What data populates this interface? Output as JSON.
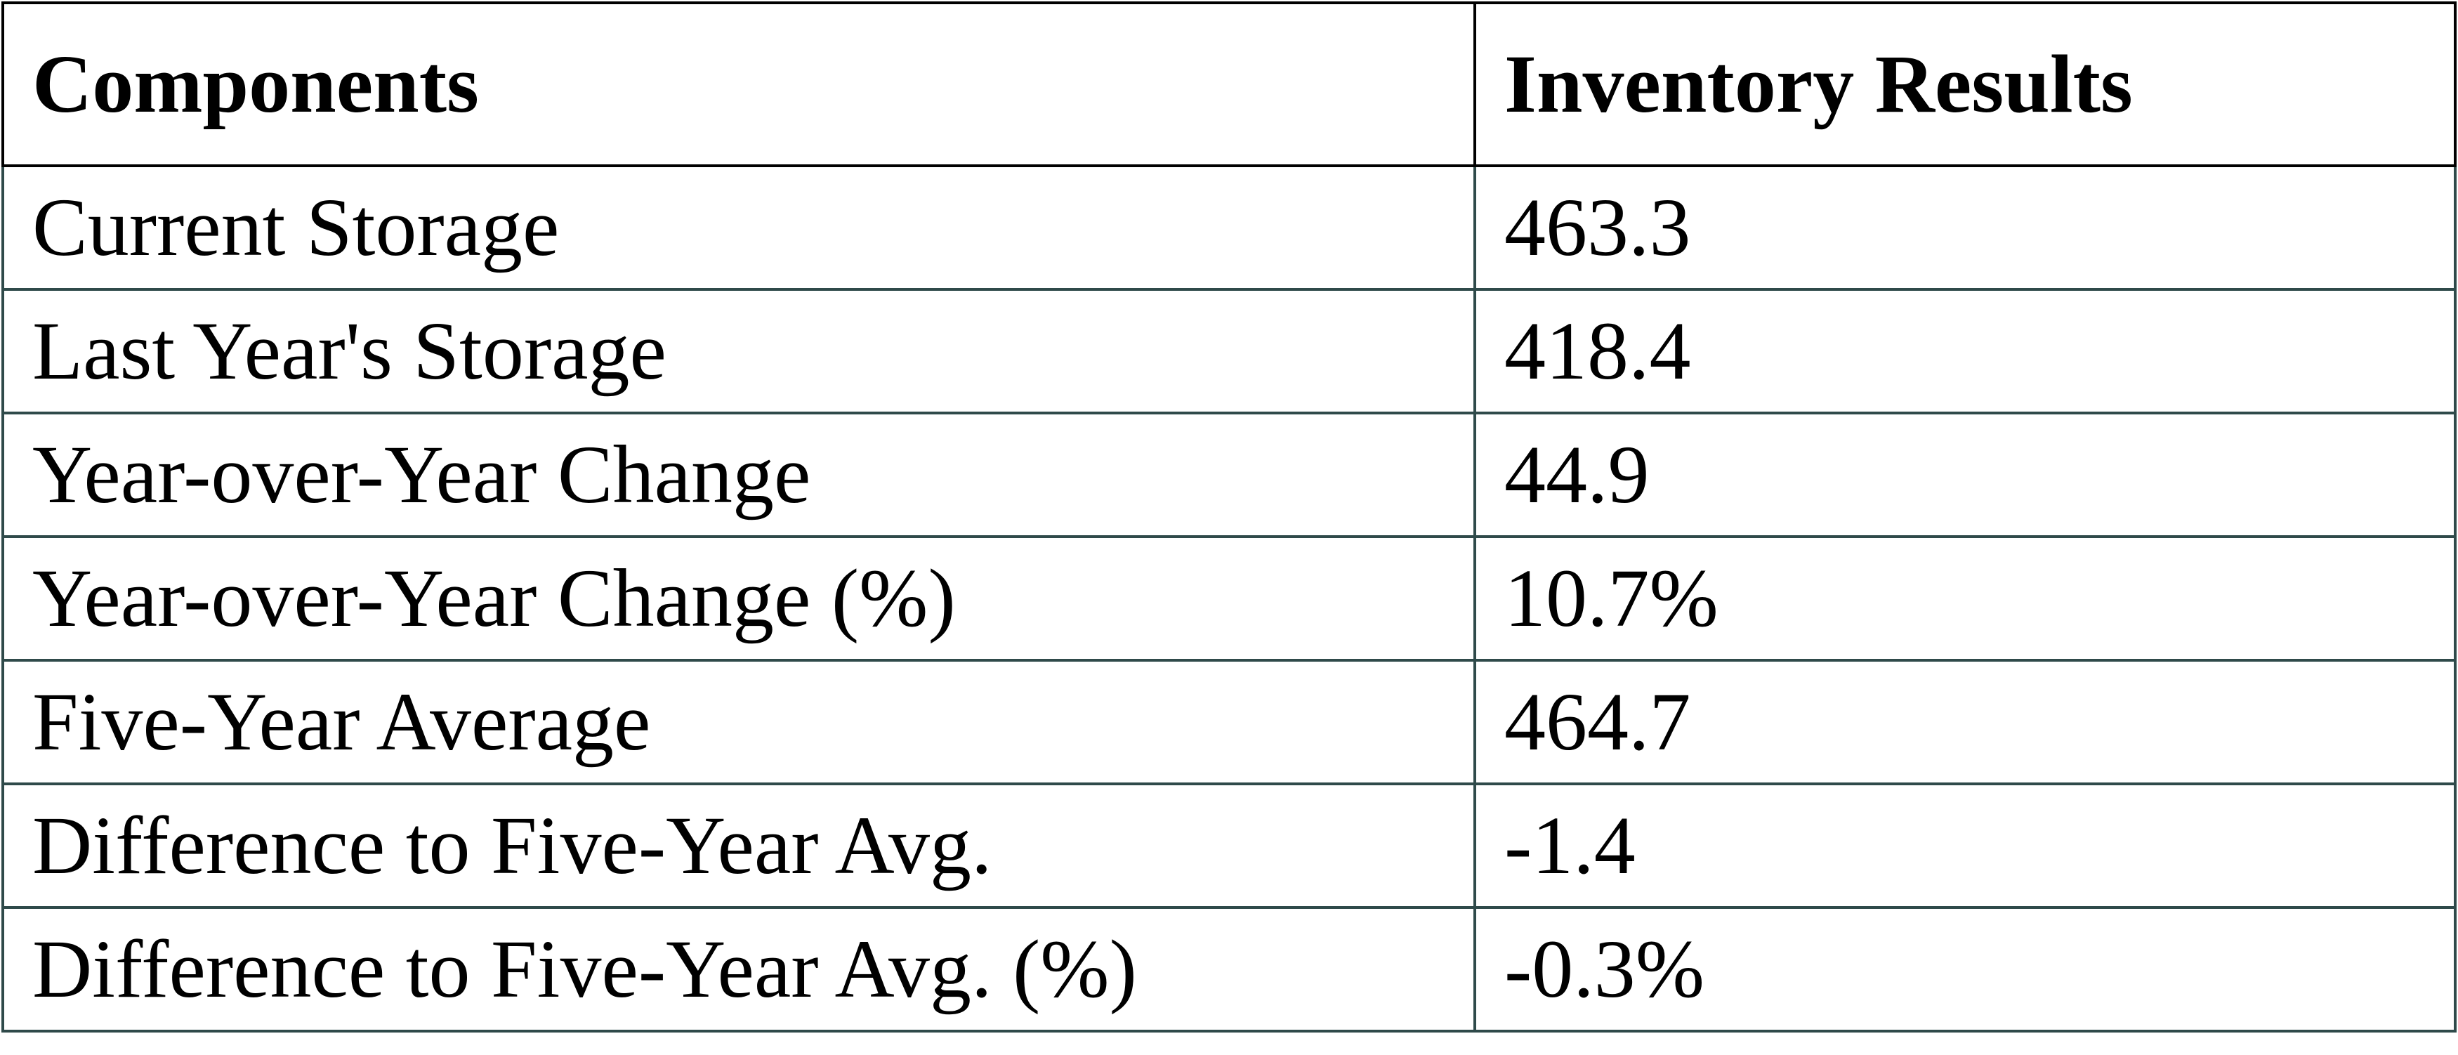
{
  "table": {
    "header": [
      "Components",
      "Inventory Results"
    ],
    "rows": [
      [
        "Current Storage",
        "463.3"
      ],
      [
        "Last Year's Storage",
        "418.4"
      ],
      [
        "Year-over-Year Change",
        "44.9"
      ],
      [
        "Year-over-Year Change (%)",
        "10.7%"
      ],
      [
        "Five-Year Average",
        "464.7"
      ],
      [
        "Difference to Five-Year Avg.",
        "-1.4"
      ],
      [
        "Difference to Five-Year Avg. (%)",
        "-0.3%"
      ]
    ]
  }
}
